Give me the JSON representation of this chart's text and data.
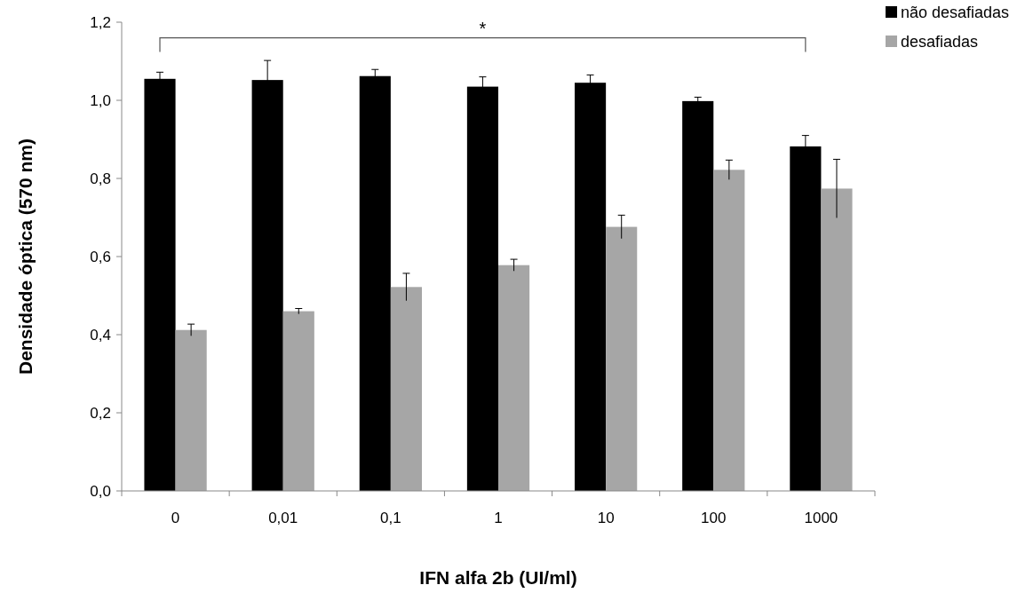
{
  "chart_data": {
    "type": "bar",
    "xlabel": "IFN alfa 2b (UI/ml)",
    "ylabel": "Densidade óptica (570 nm)",
    "categories": [
      "0",
      "0,01",
      "0,1",
      "1",
      "10",
      "100",
      "1000"
    ],
    "series": [
      {
        "name": "não desafiadas",
        "color": "#000000",
        "values": [
          1.055,
          1.052,
          1.062,
          1.035,
          1.045,
          0.998,
          0.882
        ],
        "errors": [
          0.017,
          0.05,
          0.017,
          0.025,
          0.02,
          0.01,
          0.028
        ]
      },
      {
        "name": "desafiadas",
        "color": "#a6a6a6",
        "values": [
          0.412,
          0.46,
          0.522,
          0.578,
          0.676,
          0.822,
          0.774
        ],
        "errors": [
          0.015,
          0.007,
          0.035,
          0.015,
          0.03,
          0.025,
          0.075
        ]
      }
    ],
    "ylim": [
      0,
      1.2
    ],
    "yticks": [
      {
        "value": 0,
        "label": "0,0"
      },
      {
        "value": 0.2,
        "label": "0,2"
      },
      {
        "value": 0.4,
        "label": "0,4"
      },
      {
        "value": 0.6,
        "label": "0,6"
      },
      {
        "value": 0.8,
        "label": "0,8"
      },
      {
        "value": 1,
        "label": "1,0"
      },
      {
        "value": 1.2,
        "label": "1,2"
      }
    ],
    "annotations": [
      "*"
    ],
    "legend": "top right",
    "grid": false
  }
}
